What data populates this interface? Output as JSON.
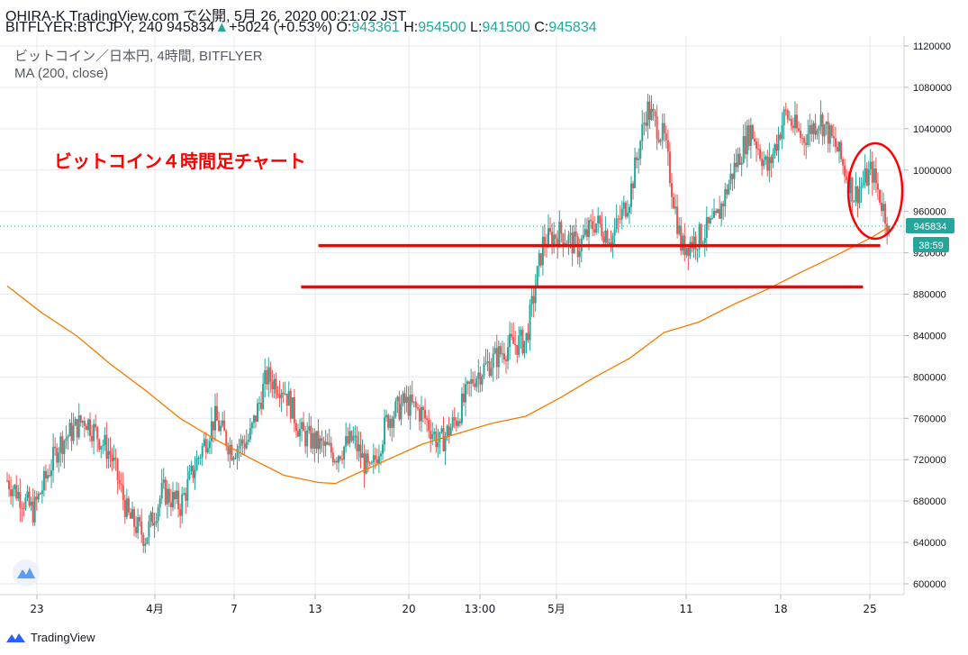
{
  "header": {
    "line1": "OHIRA-K TradingView.com で公開, 5月 26, 2020 00:21:02 JST",
    "symbol_prefix": "BITFLYER:BTCJPY, 240 945834",
    "change_arrow": "▲",
    "change": "+5024 (+0.53%)",
    "o_label": " O:",
    "o_value": "943361",
    "h_label": " H:",
    "h_value": "954500",
    "l_label": " L:",
    "l_value": "941500",
    "c_label": " C:",
    "c_value": "945834"
  },
  "legend": {
    "title": "ビットコイン／日本円, 4時間, BITFLYER",
    "ma": "MA (200, close)"
  },
  "annotation": "ビットコイン４時間足チャート",
  "price_badge": "945834",
  "countdown_badge": "38:59",
  "footer": {
    "brand": "TradingView"
  },
  "colors": {
    "up": "#26a69a",
    "down": "#ef5350",
    "ma": "#f57c00",
    "annotation": "#ff0000",
    "grid": "#e6e9ef",
    "axis_text": "#131722"
  },
  "chart_data": {
    "type": "candlestick",
    "interval": "4h",
    "ylim": [
      590000,
      1130000
    ],
    "y_ticks": [
      600000,
      640000,
      680000,
      720000,
      760000,
      800000,
      840000,
      880000,
      920000,
      960000,
      1000000,
      1040000,
      1080000,
      1120000
    ],
    "x_ticks": [
      "23",
      "4月",
      "7",
      "13",
      "20",
      "13:00",
      "5月",
      "11",
      "18",
      "25"
    ],
    "grid": true,
    "close_path": [
      [
        0,
        700000
      ],
      [
        3,
        670000
      ],
      [
        6,
        735000
      ],
      [
        9,
        760000
      ],
      [
        12,
        725000
      ],
      [
        14,
        665000
      ],
      [
        16,
        645000
      ],
      [
        18,
        690000
      ],
      [
        20,
        675000
      ],
      [
        22,
        720000
      ],
      [
        24,
        760000
      ],
      [
        26,
        730000
      ],
      [
        28,
        740000
      ],
      [
        30,
        800000
      ],
      [
        32,
        790000
      ],
      [
        34,
        745000
      ],
      [
        36,
        735000
      ],
      [
        38,
        725000
      ],
      [
        40,
        740000
      ],
      [
        42,
        705000
      ],
      [
        44,
        760000
      ],
      [
        46,
        775000
      ],
      [
        48,
        765000
      ],
      [
        50,
        735000
      ],
      [
        52,
        760000
      ],
      [
        54,
        800000
      ],
      [
        56,
        815000
      ],
      [
        58,
        830000
      ],
      [
        60,
        835000
      ],
      [
        62,
        930000
      ],
      [
        64,
        940000
      ],
      [
        66,
        925000
      ],
      [
        68,
        950000
      ],
      [
        70,
        935000
      ],
      [
        72,
        975000
      ],
      [
        74,
        1060000
      ],
      [
        76,
        1030000
      ],
      [
        78,
        925000
      ],
      [
        80,
        935000
      ],
      [
        82,
        950000
      ],
      [
        84,
        1000000
      ],
      [
        86,
        1040000
      ],
      [
        88,
        1000000
      ],
      [
        90,
        1055000
      ],
      [
        92,
        1030000
      ],
      [
        94,
        1050000
      ],
      [
        96,
        1020000
      ],
      [
        98,
        975000
      ],
      [
        100,
        1000000
      ],
      [
        102,
        945834
      ]
    ],
    "series": [
      {
        "name": "MA (200, close)",
        "points": [
          [
            0,
            888000
          ],
          [
            4,
            862000
          ],
          [
            8,
            840000
          ],
          [
            12,
            812000
          ],
          [
            16,
            787000
          ],
          [
            20,
            760000
          ],
          [
            24,
            740000
          ],
          [
            28,
            722000
          ],
          [
            32,
            705000
          ],
          [
            36,
            698000
          ],
          [
            38,
            697000
          ],
          [
            40,
            705000
          ],
          [
            44,
            720000
          ],
          [
            48,
            735000
          ],
          [
            52,
            745000
          ],
          [
            56,
            755000
          ],
          [
            60,
            762000
          ],
          [
            64,
            780000
          ],
          [
            68,
            800000
          ],
          [
            72,
            818000
          ],
          [
            76,
            843000
          ],
          [
            80,
            853000
          ],
          [
            84,
            870000
          ],
          [
            88,
            885000
          ],
          [
            92,
            902000
          ],
          [
            96,
            918000
          ],
          [
            100,
            935000
          ],
          [
            102,
            945000
          ]
        ]
      }
    ],
    "support_lines": [
      {
        "value": 927000,
        "from_step": 36,
        "to_step": 101
      },
      {
        "value": 887000,
        "from_step": 34,
        "to_step": 99
      }
    ],
    "last_price": 945834
  }
}
